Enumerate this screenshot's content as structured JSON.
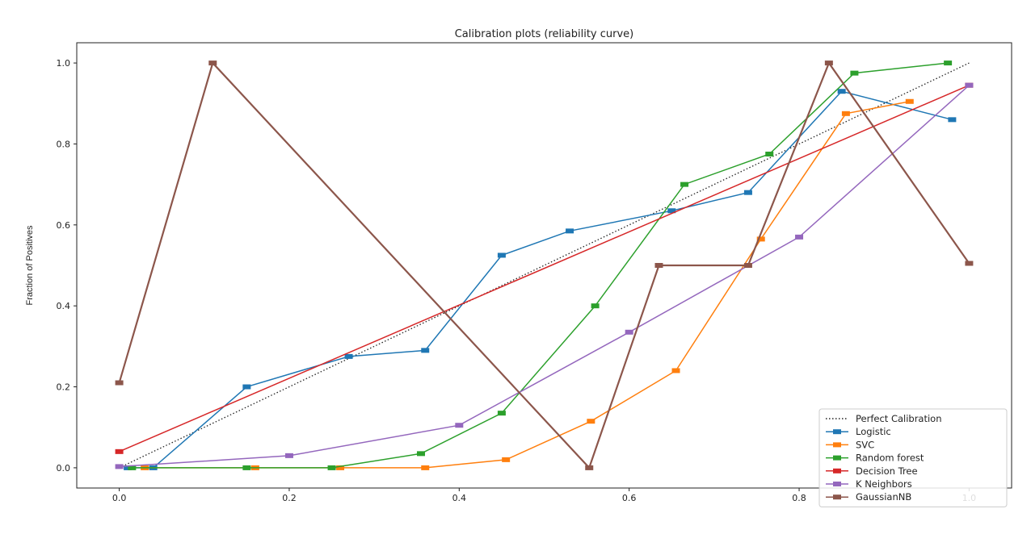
{
  "chart_data": {
    "type": "line",
    "title": "Calibration plots  (reliability curve)",
    "xlabel": "",
    "ylabel": "Fraction of Positives",
    "xlim": [
      -0.05,
      1.05
    ],
    "ylim": [
      -0.05,
      1.05
    ],
    "x_ticks": [
      "0.0",
      "0.2",
      "0.4",
      "0.6",
      "0.8",
      "1.0"
    ],
    "y_ticks": [
      "0.0",
      "0.2",
      "0.4",
      "0.6",
      "0.8",
      "1.0"
    ],
    "grid": false,
    "legend_position": "lower-right",
    "series": [
      {
        "name": "Perfect Calibration",
        "color": "#222222",
        "style": "dotted",
        "marker": false,
        "x": [
          0.0,
          1.0
        ],
        "y": [
          0.0,
          1.0
        ]
      },
      {
        "name": "Logistic",
        "color": "#1f77b4",
        "style": "solid",
        "marker": true,
        "x": [
          0.01,
          0.04,
          0.15,
          0.27,
          0.36,
          0.45,
          0.53,
          0.65,
          0.74,
          0.85,
          0.98
        ],
        "y": [
          0.0,
          0.0,
          0.2,
          0.275,
          0.29,
          0.525,
          0.585,
          0.635,
          0.68,
          0.93,
          0.86
        ]
      },
      {
        "name": "SVC",
        "color": "#ff7f0e",
        "style": "solid",
        "marker": true,
        "x": [
          0.03,
          0.16,
          0.26,
          0.36,
          0.455,
          0.555,
          0.655,
          0.755,
          0.855,
          0.93
        ],
        "y": [
          0.0,
          0.0,
          0.0,
          0.0,
          0.02,
          0.115,
          0.24,
          0.565,
          0.875,
          0.905
        ]
      },
      {
        "name": "Random forest",
        "color": "#2ca02c",
        "style": "solid",
        "marker": true,
        "x": [
          0.015,
          0.15,
          0.25,
          0.355,
          0.45,
          0.56,
          0.665,
          0.765,
          0.865,
          0.975
        ],
        "y": [
          0.0,
          0.0,
          0.0,
          0.035,
          0.135,
          0.4,
          0.7,
          0.775,
          0.975,
          1.0
        ]
      },
      {
        "name": "Decision Tree",
        "color": "#d62728",
        "style": "solid",
        "marker": true,
        "x": [
          0.0,
          1.0
        ],
        "y": [
          0.04,
          0.945
        ]
      },
      {
        "name": "K Neighbors",
        "color": "#9467bd",
        "style": "solid",
        "marker": true,
        "x": [
          0.0,
          0.2,
          0.4,
          0.6,
          0.8,
          1.0
        ],
        "y": [
          0.003,
          0.03,
          0.105,
          0.335,
          0.57,
          0.945
        ]
      },
      {
        "name": "GaussianNB",
        "color": "#8c564b",
        "style": "solid",
        "marker": true,
        "thick": true,
        "x": [
          0.0,
          0.11,
          0.553,
          0.635,
          0.74,
          0.835,
          1.0
        ],
        "y": [
          0.21,
          1.0,
          0.0,
          0.5,
          0.5,
          1.0,
          0.505
        ]
      }
    ]
  }
}
